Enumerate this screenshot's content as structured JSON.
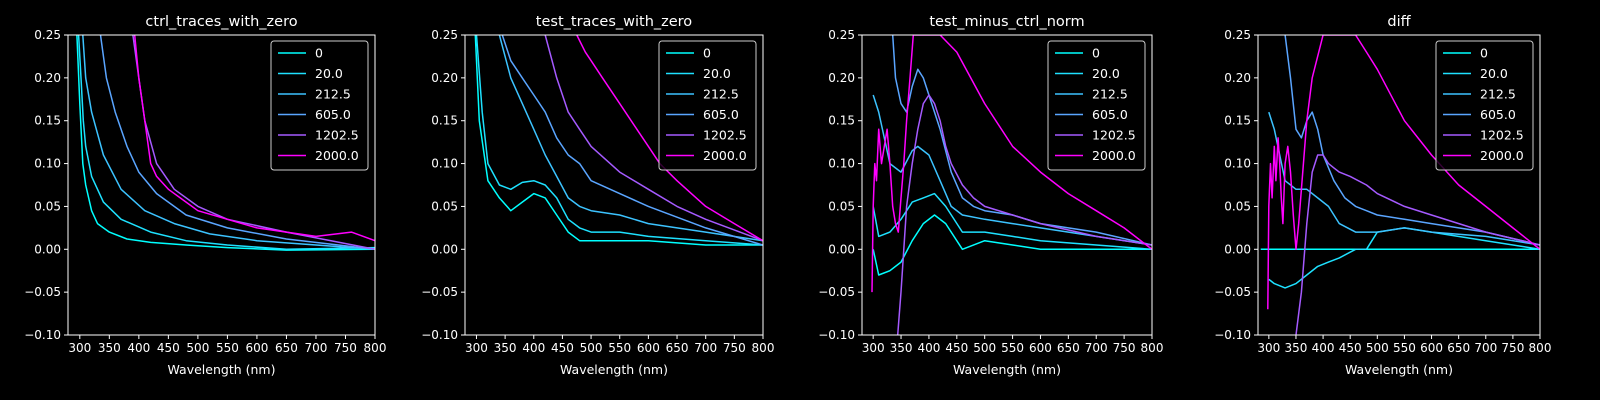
{
  "page": {
    "background": "#000000",
    "foreground": "#ffffff"
  },
  "chart_data": [
    {
      "type": "line",
      "title": "ctrl_traces_with_zero",
      "xlabel": "Wavelength (nm)",
      "ylabel": "",
      "xlim": [
        280,
        800
      ],
      "ylim": [
        -0.1,
        0.25
      ],
      "xticks": [
        "300",
        "350",
        "400",
        "450",
        "500",
        "550",
        "600",
        "650",
        "700",
        "750",
        "800"
      ],
      "yticks": [
        "−0.10",
        "−0.05",
        "0.00",
        "0.05",
        "0.10",
        "0.15",
        "0.20",
        "0.25"
      ],
      "grid": false,
      "legend": "top-right",
      "series": [
        {
          "name": "0",
          "color": "#00ffff",
          "x": [
            295,
            300,
            305,
            310,
            320,
            330,
            350,
            380,
            420,
            480,
            550,
            650,
            800
          ],
          "y": [
            0.25,
            0.17,
            0.1,
            0.075,
            0.045,
            0.03,
            0.02,
            0.012,
            0.008,
            0.005,
            0.002,
            -0.001,
            0.0
          ]
        },
        {
          "name": "20.0",
          "color": "#1ee1ff",
          "x": [
            298,
            302,
            306,
            310,
            320,
            340,
            370,
            420,
            480,
            550,
            650,
            800
          ],
          "y": [
            0.25,
            0.2,
            0.15,
            0.12,
            0.085,
            0.055,
            0.035,
            0.02,
            0.01,
            0.005,
            0.0,
            0.002
          ]
        },
        {
          "name": "212.5",
          "color": "#3cc3ff",
          "x": [
            305,
            310,
            320,
            340,
            370,
            410,
            460,
            520,
            600,
            700,
            800
          ],
          "y": [
            0.25,
            0.2,
            0.16,
            0.11,
            0.07,
            0.045,
            0.03,
            0.018,
            0.01,
            0.005,
            0.0
          ]
        },
        {
          "name": "605.0",
          "color": "#5aa5ff",
          "x": [
            335,
            345,
            360,
            380,
            400,
            430,
            480,
            550,
            650,
            800
          ],
          "y": [
            0.25,
            0.2,
            0.16,
            0.12,
            0.09,
            0.065,
            0.04,
            0.025,
            0.012,
            0.0
          ]
        },
        {
          "name": "1202.5",
          "color": "#a55aff",
          "x": [
            390,
            400,
            410,
            430,
            460,
            500,
            550,
            650,
            800
          ],
          "y": [
            0.25,
            0.2,
            0.15,
            0.1,
            0.07,
            0.05,
            0.035,
            0.02,
            0.0
          ]
        },
        {
          "name": "2000.0",
          "color": "#ff00ff",
          "x": [
            393,
            400,
            410,
            420,
            430,
            450,
            480,
            500,
            550,
            600,
            650,
            700,
            760,
            800
          ],
          "y": [
            0.25,
            0.2,
            0.15,
            0.1,
            0.085,
            0.07,
            0.055,
            0.045,
            0.035,
            0.025,
            0.02,
            0.015,
            0.02,
            0.01
          ]
        }
      ]
    },
    {
      "type": "line",
      "title": "test_traces_with_zero",
      "xlabel": "Wavelength (nm)",
      "ylabel": "",
      "xlim": [
        280,
        800
      ],
      "ylim": [
        -0.1,
        0.25
      ],
      "xticks": [
        "300",
        "350",
        "400",
        "450",
        "500",
        "550",
        "600",
        "650",
        "700",
        "750",
        "800"
      ],
      "yticks": [
        "−0.10",
        "−0.05",
        "0.00",
        "0.05",
        "0.10",
        "0.15",
        "0.20",
        "0.25"
      ],
      "grid": false,
      "legend": "top-right",
      "series": [
        {
          "name": "0",
          "color": "#00ffff",
          "x": [
            298,
            305,
            320,
            340,
            360,
            380,
            400,
            420,
            440,
            460,
            480,
            500,
            550,
            600,
            700,
            800
          ],
          "y": [
            0.25,
            0.15,
            0.08,
            0.06,
            0.045,
            0.055,
            0.065,
            0.06,
            0.04,
            0.02,
            0.01,
            0.01,
            0.01,
            0.01,
            0.005,
            0.005
          ]
        },
        {
          "name": "20.0",
          "color": "#1ee1ff",
          "x": [
            300,
            310,
            320,
            340,
            360,
            380,
            400,
            420,
            440,
            460,
            480,
            500,
            550,
            600,
            700,
            800
          ],
          "y": [
            0.25,
            0.16,
            0.1,
            0.075,
            0.07,
            0.078,
            0.08,
            0.075,
            0.06,
            0.035,
            0.025,
            0.02,
            0.02,
            0.015,
            0.01,
            0.005
          ]
        },
        {
          "name": "212.5",
          "color": "#3cc3ff",
          "x": [
            340,
            360,
            380,
            400,
            420,
            440,
            460,
            480,
            500,
            550,
            600,
            700,
            800
          ],
          "y": [
            0.25,
            0.2,
            0.17,
            0.14,
            0.11,
            0.085,
            0.06,
            0.05,
            0.045,
            0.04,
            0.03,
            0.02,
            0.01
          ]
        },
        {
          "name": "605.0",
          "color": "#5aa5ff",
          "x": [
            345,
            360,
            380,
            400,
            420,
            440,
            460,
            480,
            500,
            550,
            600,
            700,
            800
          ],
          "y": [
            0.25,
            0.22,
            0.2,
            0.18,
            0.16,
            0.13,
            0.11,
            0.1,
            0.08,
            0.065,
            0.05,
            0.025,
            0.005
          ]
        },
        {
          "name": "1202.5",
          "color": "#a55aff",
          "x": [
            420,
            440,
            460,
            480,
            500,
            550,
            600,
            650,
            700,
            800
          ],
          "y": [
            0.25,
            0.2,
            0.16,
            0.14,
            0.12,
            0.09,
            0.07,
            0.05,
            0.035,
            0.01
          ]
        },
        {
          "name": "2000.0",
          "color": "#ff00ff",
          "x": [
            475,
            490,
            500,
            520,
            550,
            580,
            600,
            620,
            650,
            700,
            750,
            800
          ],
          "y": [
            0.25,
            0.23,
            0.22,
            0.2,
            0.17,
            0.14,
            0.12,
            0.1,
            0.08,
            0.05,
            0.03,
            0.01
          ]
        }
      ]
    },
    {
      "type": "line",
      "title": "test_minus_ctrl_norm",
      "xlabel": "Wavelength (nm)",
      "ylabel": "",
      "xlim": [
        280,
        800
      ],
      "ylim": [
        -0.1,
        0.25
      ],
      "xticks": [
        "300",
        "350",
        "400",
        "450",
        "500",
        "550",
        "600",
        "650",
        "700",
        "750",
        "800"
      ],
      "yticks": [
        "−0.10",
        "−0.05",
        "0.00",
        "0.05",
        "0.10",
        "0.15",
        "0.20",
        "0.25"
      ],
      "grid": false,
      "legend": "top-right",
      "series": [
        {
          "name": "0",
          "color": "#00ffff",
          "x": [
            300,
            310,
            330,
            350,
            370,
            390,
            410,
            430,
            460,
            500,
            550,
            600,
            700,
            800
          ],
          "y": [
            0.0,
            -0.03,
            -0.025,
            -0.015,
            0.01,
            0.03,
            0.04,
            0.03,
            0.0,
            0.01,
            0.005,
            0.0,
            0.0,
            0.0
          ]
        },
        {
          "name": "20.0",
          "color": "#1ee1ff",
          "x": [
            300,
            310,
            330,
            350,
            370,
            390,
            410,
            430,
            460,
            500,
            550,
            600,
            700,
            800
          ],
          "y": [
            0.05,
            0.015,
            0.02,
            0.035,
            0.055,
            0.06,
            0.065,
            0.05,
            0.02,
            0.02,
            0.015,
            0.01,
            0.005,
            0.0
          ]
        },
        {
          "name": "212.5",
          "color": "#3cc3ff",
          "x": [
            300,
            310,
            330,
            350,
            370,
            380,
            400,
            420,
            440,
            460,
            500,
            550,
            600,
            700,
            800
          ],
          "y": [
            0.18,
            0.16,
            0.1,
            0.09,
            0.115,
            0.12,
            0.11,
            0.08,
            0.05,
            0.04,
            0.035,
            0.03,
            0.025,
            0.015,
            0.005
          ]
        },
        {
          "name": "605.0",
          "color": "#5aa5ff",
          "x": [
            335,
            340,
            350,
            360,
            370,
            380,
            390,
            400,
            410,
            420,
            440,
            460,
            480,
            500,
            550,
            600,
            700,
            800
          ],
          "y": [
            0.25,
            0.2,
            0.17,
            0.16,
            0.19,
            0.21,
            0.2,
            0.18,
            0.16,
            0.14,
            0.09,
            0.06,
            0.05,
            0.045,
            0.04,
            0.03,
            0.02,
            0.005
          ]
        },
        {
          "name": "1202.5",
          "color": "#a55aff",
          "x": [
            344,
            350,
            360,
            370,
            380,
            390,
            400,
            410,
            420,
            430,
            440,
            460,
            480,
            500,
            550,
            600,
            700,
            800
          ],
          "y": [
            -0.1,
            -0.05,
            0.05,
            0.1,
            0.14,
            0.17,
            0.18,
            0.17,
            0.15,
            0.12,
            0.1,
            0.075,
            0.06,
            0.05,
            0.04,
            0.03,
            0.015,
            0.005
          ]
        },
        {
          "name": "2000.0",
          "color": "#ff00ff",
          "x": [
            298,
            300,
            303,
            306,
            310,
            315,
            320,
            325,
            330,
            335,
            340,
            345,
            350,
            355,
            360,
            366,
            372,
            380,
            400,
            420,
            450,
            500,
            550,
            600,
            650,
            700,
            750,
            800
          ],
          "y": [
            -0.05,
            0.05,
            0.1,
            0.08,
            0.14,
            0.1,
            0.12,
            0.14,
            0.1,
            0.05,
            0.03,
            0.02,
            0.06,
            0.1,
            0.15,
            0.2,
            0.25,
            0.25,
            0.25,
            0.25,
            0.23,
            0.17,
            0.12,
            0.09,
            0.065,
            0.045,
            0.025,
            0.0
          ]
        }
      ]
    },
    {
      "type": "line",
      "title": "diff",
      "xlabel": "Wavelength (nm)",
      "ylabel": "",
      "xlim": [
        280,
        800
      ],
      "ylim": [
        -0.1,
        0.25
      ],
      "xticks": [
        "300",
        "350",
        "400",
        "450",
        "500",
        "550",
        "600",
        "650",
        "700",
        "750",
        "800"
      ],
      "yticks": [
        "−0.10",
        "−0.05",
        "0.00",
        "0.05",
        "0.10",
        "0.15",
        "0.20",
        "0.25"
      ],
      "grid": false,
      "legend": "top-right",
      "series": [
        {
          "name": "0",
          "color": "#00ffff",
          "x": [
            285,
            800
          ],
          "y": [
            0.0,
            0.0
          ]
        },
        {
          "name": "20.0",
          "color": "#1ee1ff",
          "x": [
            300,
            310,
            330,
            350,
            370,
            390,
            410,
            430,
            460,
            480,
            490,
            500,
            550,
            600,
            700,
            800
          ],
          "y": [
            -0.035,
            -0.04,
            -0.045,
            -0.04,
            -0.03,
            -0.02,
            -0.015,
            -0.01,
            0.0,
            0.0,
            0.01,
            0.02,
            0.025,
            0.02,
            0.01,
            0.0
          ]
        },
        {
          "name": "212.5",
          "color": "#3cc3ff",
          "x": [
            300,
            310,
            320,
            330,
            350,
            370,
            390,
            410,
            430,
            460,
            500,
            550,
            600,
            700,
            800
          ],
          "y": [
            0.16,
            0.14,
            0.11,
            0.08,
            0.07,
            0.07,
            0.06,
            0.05,
            0.03,
            0.02,
            0.02,
            0.025,
            0.02,
            0.015,
            0.005
          ]
        },
        {
          "name": "605.0",
          "color": "#5aa5ff",
          "x": [
            330,
            340,
            350,
            360,
            370,
            380,
            390,
            400,
            420,
            440,
            460,
            480,
            500,
            550,
            600,
            700,
            800
          ],
          "y": [
            0.25,
            0.2,
            0.14,
            0.13,
            0.15,
            0.16,
            0.14,
            0.11,
            0.08,
            0.06,
            0.05,
            0.045,
            0.04,
            0.035,
            0.03,
            0.02,
            0.005
          ]
        },
        {
          "name": "1202.5",
          "color": "#a55aff",
          "x": [
            350,
            360,
            370,
            380,
            390,
            400,
            410,
            420,
            430,
            450,
            480,
            500,
            550,
            600,
            700,
            800
          ],
          "y": [
            -0.1,
            -0.05,
            0.03,
            0.09,
            0.11,
            0.11,
            0.1,
            0.095,
            0.09,
            0.085,
            0.075,
            0.065,
            0.05,
            0.04,
            0.02,
            0.005
          ]
        },
        {
          "name": "2000.0",
          "color": "#ff00ff",
          "x": [
            298,
            300,
            303,
            306,
            310,
            313,
            317,
            320,
            323,
            326,
            330,
            335,
            340,
            345,
            350,
            355,
            360,
            370,
            380,
            400,
            420,
            440,
            460,
            480,
            500,
            550,
            600,
            650,
            700,
            750,
            800
          ],
          "y": [
            -0.07,
            0.05,
            0.1,
            0.06,
            0.12,
            0.08,
            0.13,
            0.1,
            0.06,
            0.03,
            0.1,
            0.12,
            0.09,
            0.04,
            0.0,
            0.03,
            0.07,
            0.15,
            0.2,
            0.25,
            0.25,
            0.25,
            0.25,
            0.23,
            0.21,
            0.15,
            0.11,
            0.075,
            0.05,
            0.025,
            0.0
          ]
        }
      ]
    }
  ]
}
